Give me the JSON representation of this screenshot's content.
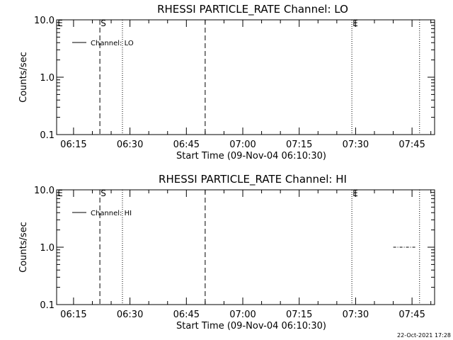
{
  "footer": {
    "timestamp": "22-Oct-2021 17:28"
  },
  "chart_data": [
    {
      "type": "line",
      "title": "RHESSI PARTICLE_RATE Channel: LO",
      "xlabel": "Start Time (09-Nov-04 06:10:30)",
      "ylabel": "Counts/sec",
      "yscale": "log",
      "ylim": [
        0.1,
        10.0
      ],
      "y_ticks": [
        {
          "value": 0.1,
          "label": "0.1"
        },
        {
          "value": 1.0,
          "label": "1.0"
        },
        {
          "value": 10.0,
          "label": "10.0"
        }
      ],
      "xlim": [
        "06:10:30",
        "07:51:00"
      ],
      "x_ticks": [
        {
          "value": "06:15",
          "label": "06:15"
        },
        {
          "value": "06:30",
          "label": "06:30"
        },
        {
          "value": "06:45",
          "label": "06:45"
        },
        {
          "value": "07:00",
          "label": "07:00"
        },
        {
          "value": "07:15",
          "label": "07:15"
        },
        {
          "value": "07:30",
          "label": "07:30"
        },
        {
          "value": "07:45",
          "label": "07:45"
        }
      ],
      "legend": {
        "position": "top-left",
        "entries": [
          "Channel: LO"
        ]
      },
      "markers": [
        {
          "time": "06:10:30",
          "label": "E",
          "style": "none"
        },
        {
          "time": "06:22:00",
          "label": "S",
          "style": "dashed"
        },
        {
          "time": "06:28:00",
          "label": "",
          "style": "dotted"
        },
        {
          "time": "06:50:00",
          "label": "",
          "style": "dashed"
        },
        {
          "time": "07:29:00",
          "label": "E",
          "style": "dotted"
        },
        {
          "time": "07:47:00",
          "label": "",
          "style": "dotted"
        }
      ],
      "series": [
        {
          "name": "Channel: LO",
          "x": [],
          "y": []
        }
      ]
    },
    {
      "type": "line",
      "title": "RHESSI PARTICLE_RATE Channel: HI",
      "xlabel": "Start Time (09-Nov-04 06:10:30)",
      "ylabel": "Counts/sec",
      "yscale": "log",
      "ylim": [
        0.1,
        10.0
      ],
      "y_ticks": [
        {
          "value": 0.1,
          "label": "0.1"
        },
        {
          "value": 1.0,
          "label": "1.0"
        },
        {
          "value": 10.0,
          "label": "10.0"
        }
      ],
      "xlim": [
        "06:10:30",
        "07:51:00"
      ],
      "x_ticks": [
        {
          "value": "06:15",
          "label": "06:15"
        },
        {
          "value": "06:30",
          "label": "06:30"
        },
        {
          "value": "06:45",
          "label": "06:45"
        },
        {
          "value": "07:00",
          "label": "07:00"
        },
        {
          "value": "07:15",
          "label": "07:15"
        },
        {
          "value": "07:30",
          "label": "07:30"
        },
        {
          "value": "07:45",
          "label": "07:45"
        }
      ],
      "legend": {
        "position": "top-left",
        "entries": [
          "Channel: HI"
        ]
      },
      "markers": [
        {
          "time": "06:10:30",
          "label": "E",
          "style": "none"
        },
        {
          "time": "06:22:00",
          "label": "S",
          "style": "dashed"
        },
        {
          "time": "06:28:00",
          "label": "",
          "style": "dotted"
        },
        {
          "time": "06:50:00",
          "label": "",
          "style": "dashed"
        },
        {
          "time": "07:29:00",
          "label": "E",
          "style": "dotted"
        },
        {
          "time": "07:47:00",
          "label": "",
          "style": "dotted"
        }
      ],
      "series": [
        {
          "name": "Channel: HI",
          "x": [
            "07:40:00",
            "07:41:00",
            "07:42:00",
            "07:43:00",
            "07:44:00",
            "07:45:00",
            "07:46:00"
          ],
          "y": [
            1.0,
            1.0,
            1.0,
            1.0,
            1.0,
            1.0,
            1.0
          ]
        }
      ]
    }
  ]
}
